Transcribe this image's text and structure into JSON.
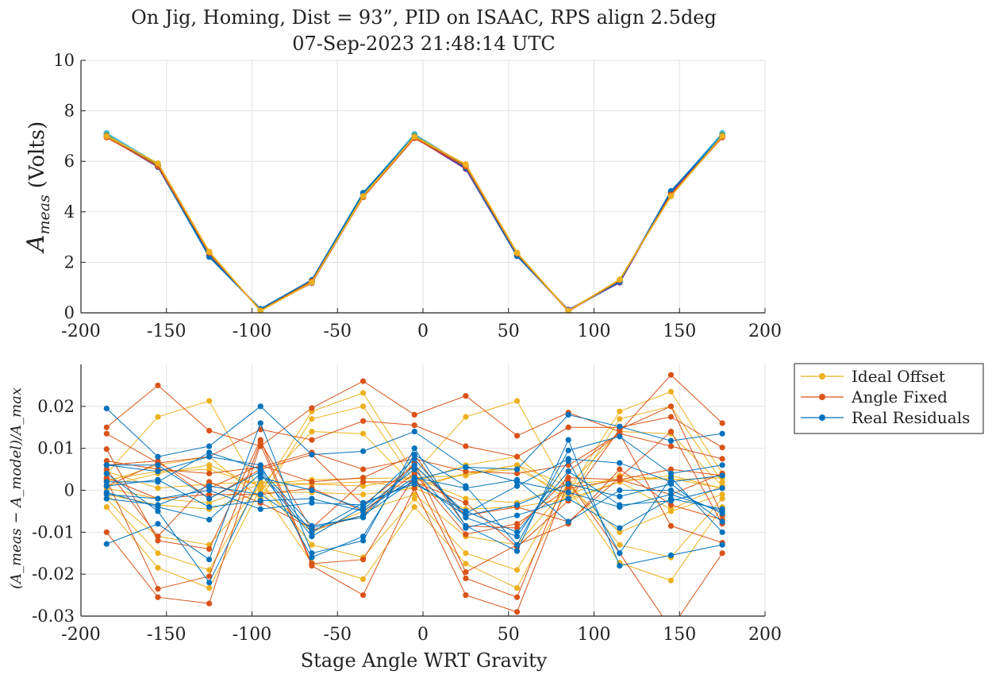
{
  "title_line1": "On Jig, Homing, Dist = 93”, PID on ISAAC, RPS align 2.5deg",
  "title_line2": "07-Sep-2023 21:48:14 UTC",
  "chart_data": [
    {
      "type": "line",
      "ylabel": "A_meas  (Volts)",
      "ylabel_main": "A",
      "ylabel_sub": "meas",
      "ylabel_rest": "(Volts)",
      "xlim": [
        -200,
        200
      ],
      "ylim": [
        0,
        10
      ],
      "xticks": [
        "-200",
        "-150",
        "-100",
        "-50",
        "0",
        "50",
        "100",
        "150",
        "200"
      ],
      "yticks": [
        "0",
        "2",
        "4",
        "6",
        "8",
        "10"
      ],
      "grid": true,
      "x": [
        -185,
        -155,
        -125,
        -95,
        -65,
        -35,
        -5,
        25,
        55,
        85,
        115,
        145,
        175
      ],
      "series": [
        {
          "color": "#4DBEEE",
          "values": [
            7.12,
            5.9,
            2.3,
            0.12,
            1.22,
            4.72,
            7.08,
            5.82,
            2.28,
            0.08,
            1.22,
            4.8,
            7.12
          ]
        },
        {
          "color": "#77AC30",
          "values": [
            7.05,
            5.85,
            2.35,
            0.1,
            1.25,
            4.65,
            7.02,
            5.85,
            2.32,
            0.1,
            1.28,
            4.7,
            7.05
          ]
        },
        {
          "color": "#7E2F8E",
          "values": [
            6.98,
            5.78,
            2.25,
            0.14,
            1.18,
            4.6,
            6.95,
            5.7,
            2.25,
            0.12,
            1.2,
            4.75,
            6.98
          ]
        },
        {
          "color": "#0072BD",
          "values": [
            7.02,
            5.8,
            2.22,
            0.15,
            1.3,
            4.75,
            7.0,
            5.75,
            2.26,
            0.1,
            1.24,
            4.82,
            7.02
          ]
        },
        {
          "color": "#D95319",
          "values": [
            6.95,
            5.82,
            2.38,
            0.09,
            1.25,
            4.58,
            6.92,
            5.8,
            2.35,
            0.06,
            1.3,
            4.68,
            6.95
          ]
        },
        {
          "color": "#EDB120",
          "values": [
            7.0,
            5.92,
            2.42,
            0.08,
            1.2,
            4.62,
            6.98,
            5.88,
            2.38,
            0.08,
            1.32,
            4.62,
            7.0
          ]
        }
      ]
    },
    {
      "type": "line",
      "xlabel": "Stage Angle WRT Gravity",
      "ylabel": "(A_meas − A_model)/A_max",
      "xlim": [
        -200,
        200
      ],
      "ylim": [
        -0.03,
        0.03
      ],
      "xticks": [
        "-200",
        "-150",
        "-100",
        "-50",
        "0",
        "50",
        "100",
        "150",
        "200"
      ],
      "yticks": [
        "-0.03",
        "-0.02",
        "-0.01",
        "0",
        "0.01",
        "0.02"
      ],
      "grid": true,
      "legend": "outside-right-top",
      "x": [
        -185,
        -155,
        -125,
        -95,
        -65,
        -35,
        -5,
        25,
        55,
        85,
        115,
        145,
        175
      ],
      "series": [
        {
          "name": "Ideal Offset",
          "color": "#EDB120",
          "lines": [
            [
              0.004,
              0.0175,
              0.0213,
              -0.0005,
              0.0188,
              0.0232,
              0.004,
              0.0175,
              0.0213,
              -0.0005,
              0.0188,
              0.0235,
              0.004
            ],
            [
              -0.004,
              -0.0185,
              -0.0233,
              0.0005,
              -0.0173,
              -0.0212,
              -0.004,
              -0.0175,
              -0.0233,
              0.0005,
              -0.0173,
              -0.0215,
              -0.004
            ],
            [
              0.002,
              0.006,
              0.008,
              -0.002,
              0.017,
              0.02,
              0.002,
              0.006,
              0.008,
              -0.002,
              0.017,
              0.02,
              0.002
            ],
            [
              -0.002,
              -0.015,
              -0.019,
              0.002,
              -0.013,
              -0.016,
              -0.002,
              -0.015,
              -0.019,
              0.002,
              -0.013,
              -0.016,
              -0.002
            ],
            [
              0.001,
              0.004,
              0.006,
              0.001,
              0.014,
              0.0135,
              0.001,
              0.004,
              0.006,
              0.001,
              0.014,
              0.0135,
              0.001
            ],
            [
              -0.001,
              -0.011,
              -0.013,
              0.001,
              -0.01,
              -0.005,
              -0.001,
              -0.011,
              -0.013,
              0.001,
              -0.01,
              -0.005,
              -0.001
            ],
            [
              0.0005,
              -0.002,
              -0.003,
              0.0015,
              0.0025,
              0.0028,
              0.003,
              -0.002,
              -0.003,
              0.0015,
              0.0025,
              0.0028,
              0.0005
            ],
            [
              0.0045,
              0.0005,
              0.0015,
              0.002,
              0.0015,
              0.001,
              0.003,
              0.0035,
              0.006,
              -0.0025,
              0.002,
              0.0035,
              0.0005
            ],
            [
              -0.001,
              -0.0035,
              -0.0045,
              -0.0005,
              -0.0005,
              -0.001,
              0.0005,
              -0.0045,
              -0.004,
              -0.002,
              0.002,
              -0.0045,
              0.001
            ],
            [
              0.0025,
              0.0045,
              0.005,
              0.001,
              0.0015,
              0.002,
              0.0005,
              0.004,
              0.005,
              -0.001,
              0.0035,
              0.0025,
              0.003
            ]
          ]
        },
        {
          "name": "Angle Fixed",
          "color": "#D95319",
          "lines": [
            [
              0.015,
              0.025,
              0.0142,
              0.0105,
              0.0196,
              0.026,
              0.018,
              0.0225,
              0.013,
              0.0185,
              0.014,
              0.0275,
              0.016
            ],
            [
              -0.01,
              -0.0255,
              -0.027,
              0.011,
              -0.018,
              -0.025,
              0.0005,
              -0.025,
              -0.029,
              0.002,
              -0.015,
              -0.033,
              -0.015
            ],
            [
              0.0135,
              0.0065,
              0.008,
              0.0145,
              0.012,
              0.0165,
              0.0155,
              0.0105,
              0.008,
              0.015,
              0.015,
              0.0175,
              0.0102
            ],
            [
              0.0098,
              -0.012,
              -0.014,
              0.012,
              -0.0175,
              -0.0165,
              0.0035,
              -0.021,
              -0.0255,
              0.0045,
              0.0135,
              -0.0085,
              -0.0125
            ],
            [
              0.007,
              0.005,
              0.004,
              0.0055,
              0.009,
              0.005,
              0.0075,
              0.0045,
              0.004,
              0.006,
              0.0135,
              0.0105,
              0.0075
            ],
            [
              0.0025,
              -0.0235,
              -0.0205,
              0.0115,
              -0.0095,
              -0.006,
              0.0065,
              -0.0195,
              -0.013,
              -0.008,
              0.005,
              -0.0035,
              -0.007
            ],
            [
              0.001,
              0.0065,
              0.0005,
              0.006,
              0.002,
              0.003,
              0.0085,
              -0.0085,
              -0.009,
              0.003,
              0.0025,
              0.005,
              0.0035
            ],
            [
              0.005,
              -0.011,
              0.002,
              -0.003,
              -0.009,
              0.002,
              0.002,
              -0.003,
              -0.0135,
              -0.0025,
              0.0145,
              0.02,
              -0.006
            ],
            [
              0.003,
              -0.002,
              -0.001,
              -0.001,
              0.0005,
              -0.005,
              0.004,
              -0.0105,
              -0.008,
              0.0005,
              0.0025,
              -0.001,
              0.004
            ],
            [
              0.006,
              0.007,
              -0.002,
              0.005,
              0.0085,
              -0.0035,
              0.006,
              -0.006,
              -0.004,
              -0.0075,
              0.003,
              0.014,
              -0.008
            ]
          ]
        },
        {
          "name": "Real Residuals",
          "color": "#0072BD",
          "lines": [
            [
              0.0195,
              0.008,
              0.0105,
              0.02,
              0.0085,
              0.0093,
              0.014,
              0.0055,
              0.005,
              0.018,
              0.0152,
              0.0118,
              0.0135
            ],
            [
              -0.0128,
              -0.008,
              -0.0165,
              0.016,
              -0.015,
              -0.012,
              0.01,
              -0.0085,
              -0.0145,
              0.012,
              -0.018,
              -0.0155,
              -0.013
            ],
            [
              0.006,
              0.0045,
              0.008,
              0.006,
              -0.016,
              -0.011,
              0.0085,
              0.001,
              -0.013,
              0.0095,
              0.0128,
              0.004,
              0.006
            ],
            [
              -0.0005,
              -0.004,
              -0.007,
              0.004,
              -0.011,
              -0.004,
              0.0075,
              -0.0065,
              -0.011,
              0.007,
              -0.015,
              0.003,
              -0.01
            ],
            [
              0.002,
              0.002,
              0.009,
              0.005,
              -0.0085,
              -0.0065,
              0.006,
              -0.0055,
              0.001,
              0.0075,
              0.0065,
              0.002,
              0.0035
            ],
            [
              0.004,
              -0.005,
              -0.022,
              0.003,
              0.0,
              -0.0045,
              0.005,
              -0.009,
              -0.006,
              -0.002,
              -0.009,
              -0.002,
              -0.0045
            ],
            [
              -0.001,
              -0.002,
              0.0,
              -0.0045,
              -0.003,
              -0.0035,
              0.002,
              -0.006,
              -0.0035,
              0.0015,
              -0.0015,
              0.0015,
              -0.0075
            ],
            [
              0.001,
              0.0025,
              -0.004,
              -0.0025,
              -0.002,
              -0.005,
              0.003,
              0.0005,
              0.0025,
              -0.0075,
              0.0,
              0.0,
              -0.0055
            ],
            [
              0.006,
              0.006,
              -0.002,
              0.0045,
              -0.01,
              -0.003,
              0.0015,
              -0.005,
              -0.01,
              0.0045,
              -0.0035,
              -0.0025,
              0.0005
            ],
            [
              -0.002,
              -0.0035,
              0.001,
              -0.001,
              -0.009,
              -0.006,
              0.0025,
              0.0055,
              0.002,
              -0.0005,
              -0.004,
              -0.001,
              -0.005
            ]
          ]
        }
      ]
    }
  ]
}
